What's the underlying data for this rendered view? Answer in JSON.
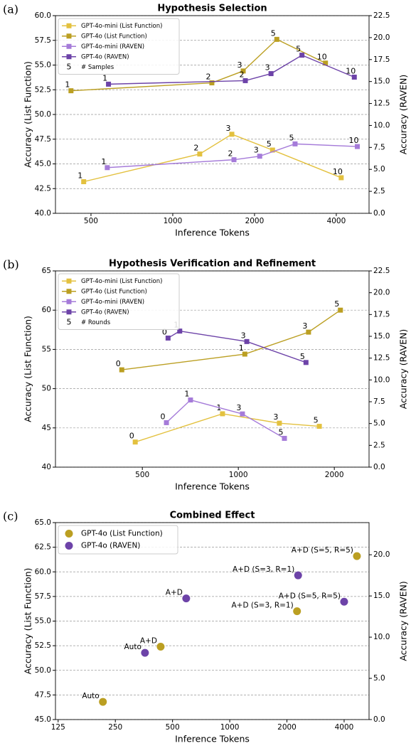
{
  "chart_data": [
    {
      "type": "line",
      "panel_label": "(a)",
      "title": "Hypothesis Selection",
      "xlabel": "Inference Tokens",
      "ylabel": "Accuracy (List Function)",
      "y2label": "Accuracy (RAVEN)",
      "xscale": "log",
      "xlim": [
        370,
        5280
      ],
      "xticks": [
        500,
        1000,
        2000,
        4000
      ],
      "ylim": [
        40,
        60
      ],
      "yticks": [
        {
          "value": 40,
          "label": "40.0"
        },
        42.5,
        {
          "value": 45,
          "label": "45.0"
        },
        47.5,
        {
          "value": 50,
          "label": "50.0"
        },
        52.5,
        {
          "value": 55,
          "label": "55.0"
        },
        57.5,
        {
          "value": 60,
          "label": "60.0"
        }
      ],
      "y2lim": [
        0,
        22.5
      ],
      "y2ticks": [
        {
          "value": 0,
          "label": "0.0"
        },
        2.5,
        {
          "value": 5,
          "label": "5.0"
        },
        7.5,
        {
          "value": 10,
          "label": "10.0"
        },
        12.5,
        {
          "value": 15,
          "label": "15.0"
        },
        17.5,
        {
          "value": 20,
          "label": "20.0"
        },
        22.5
      ],
      "grid": true,
      "legend": "upper left",
      "legend_note": {
        "symbol": "5",
        "label": "# Samples"
      },
      "series": [
        {
          "name": "GPT-4o-mini (List Function)",
          "color": "#e3c13f",
          "axis": "y",
          "x": [
            470,
            1257,
            1650,
            2330,
            4170
          ],
          "values": [
            43.2,
            46.0,
            48.0,
            46.4,
            43.6
          ],
          "annotations": [
            1,
            2,
            3,
            5,
            10
          ]
        },
        {
          "name": "GPT-4o (List Function)",
          "color": "#bb9f22",
          "axis": "y",
          "x": [
            422,
            1393,
            1817,
            2416,
            3650
          ],
          "values": [
            52.4,
            53.2,
            54.4,
            57.6,
            55.2
          ],
          "annotations": [
            1,
            2,
            3,
            5,
            10
          ]
        },
        {
          "name": "GPT-4o-mini (RAVEN)",
          "color": "#a57bd9",
          "axis": "y2",
          "x": [
            574,
            1680,
            2090,
            2820,
            4780
          ],
          "values": [
            5.2,
            6.1,
            6.5,
            7.9,
            7.6
          ],
          "annotations": [
            1,
            2,
            3,
            5,
            10
          ]
        },
        {
          "name": "GPT-4o (RAVEN)",
          "color": "#6d43a8",
          "axis": "y2",
          "x": [
            580,
            1850,
            2300,
            2990,
            4660
          ],
          "values": [
            14.7,
            15.1,
            15.9,
            18.0,
            15.5
          ],
          "annotations": [
            1,
            2,
            3,
            5,
            10
          ]
        }
      ]
    },
    {
      "type": "line",
      "panel_label": "(b)",
      "title": "Hypothesis Verification and Refinement",
      "xlabel": "Inference Tokens",
      "ylabel": "Accuracy (List Function)",
      "y2label": "Accuracy (RAVEN)",
      "xscale": "log",
      "xlim": [
        267,
        2570
      ],
      "xticks": [
        500,
        1000,
        2000
      ],
      "ylim": [
        40,
        65
      ],
      "yticks": [
        40,
        45,
        50,
        55,
        60,
        65
      ],
      "y2lim": [
        0,
        22.5
      ],
      "y2ticks": [
        {
          "value": 0,
          "label": "0.0"
        },
        2.5,
        {
          "value": 5,
          "label": "5.0"
        },
        7.5,
        {
          "value": 10,
          "label": "10.0"
        },
        12.5,
        {
          "value": 15,
          "label": "15.0"
        },
        17.5,
        {
          "value": 20,
          "label": "20.0"
        },
        22.5
      ],
      "grid": true,
      "legend": "upper left",
      "legend_note": {
        "symbol": "5",
        "label": "# Rounds"
      },
      "series": [
        {
          "name": "GPT-4o-mini (List Function)",
          "color": "#e3c13f",
          "axis": "y",
          "x": [
            475,
            892,
            1345,
            1795
          ],
          "values": [
            43.2,
            46.8,
            45.6,
            45.2
          ],
          "annotations": [
            0,
            1,
            3,
            5
          ]
        },
        {
          "name": "GPT-4o (List Function)",
          "color": "#bb9f22",
          "axis": "y",
          "x": [
            431,
            1048,
            1660,
            2090
          ],
          "values": [
            52.4,
            54.4,
            57.2,
            60.0
          ],
          "annotations": [
            0,
            1,
            3,
            5
          ]
        },
        {
          "name": "GPT-4o-mini (RAVEN)",
          "color": "#a57bd9",
          "axis": "y2",
          "x": [
            595,
            708,
            1030,
            1395
          ],
          "values": [
            5.1,
            7.7,
            6.1,
            3.3
          ],
          "annotations": [
            0,
            1,
            3,
            5
          ]
        },
        {
          "name": "GPT-4o (RAVEN)",
          "color": "#6d43a8",
          "axis": "y2",
          "x": [
            602,
            655,
            1063,
            1630
          ],
          "values": [
            14.8,
            15.6,
            14.4,
            12.0
          ],
          "annotations": [
            0,
            1,
            3,
            5
          ]
        }
      ]
    },
    {
      "type": "scatter",
      "panel_label": "(c)",
      "title": "Combined Effect",
      "xlabel": "Inference Tokens",
      "ylabel": "Accuracy (List Function)",
      "y2label": "Accuracy (RAVEN)",
      "xscale": "log",
      "xlim": [
        121,
        5410
      ],
      "xticks": [
        125,
        250,
        500,
        1000,
        2000,
        4000
      ],
      "ylim": [
        45,
        65
      ],
      "yticks": [
        {
          "value": 45,
          "label": "45.0"
        },
        47.5,
        {
          "value": 50,
          "label": "50.0"
        },
        52.5,
        {
          "value": 55,
          "label": "55.0"
        },
        57.5,
        {
          "value": 60,
          "label": "60.0"
        },
        62.5,
        {
          "value": 65,
          "label": "65.0"
        }
      ],
      "y2lim": [
        0,
        23.9
      ],
      "y2ticks": [
        {
          "value": 0,
          "label": "0.0"
        },
        {
          "value": 5,
          "label": "5.0"
        },
        {
          "value": 10,
          "label": "10.0"
        },
        {
          "value": 15,
          "label": "15.0"
        },
        {
          "value": 20,
          "label": "20.0"
        }
      ],
      "grid": true,
      "legend": "upper left",
      "series": [
        {
          "name": "GPT-4o (List Function)",
          "color": "#bb9f22",
          "axis": "y",
          "x": [
            215,
            433,
            2260,
            4670
          ],
          "values": [
            46.8,
            52.4,
            56.0,
            61.6
          ],
          "annotations": [
            "Auto",
            "A+D",
            "A+D (S=3, R=1)",
            "A+D (S=5, R=5)"
          ]
        },
        {
          "name": "GPT-4o (RAVEN)",
          "color": "#6d43a8",
          "axis": "y2",
          "x": [
            358,
            590,
            2290,
            4000
          ],
          "values": [
            8.1,
            14.7,
            17.5,
            14.3
          ],
          "annotations": [
            "Auto",
            "A+D",
            "A+D (S=3, R=1)",
            "A+D (S=5, R=5)"
          ]
        }
      ]
    }
  ]
}
